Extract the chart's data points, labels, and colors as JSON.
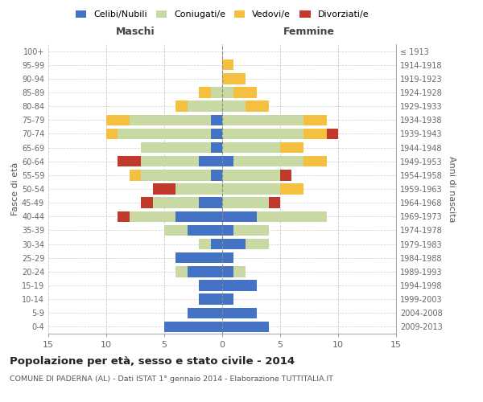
{
  "age_groups": [
    "0-4",
    "5-9",
    "10-14",
    "15-19",
    "20-24",
    "25-29",
    "30-34",
    "35-39",
    "40-44",
    "45-49",
    "50-54",
    "55-59",
    "60-64",
    "65-69",
    "70-74",
    "75-79",
    "80-84",
    "85-89",
    "90-94",
    "95-99",
    "100+"
  ],
  "years": [
    "2009-2013",
    "2004-2008",
    "1999-2003",
    "1994-1998",
    "1989-1993",
    "1984-1988",
    "1979-1983",
    "1974-1978",
    "1969-1973",
    "1964-1968",
    "1959-1963",
    "1954-1958",
    "1949-1953",
    "1944-1948",
    "1939-1943",
    "1934-1938",
    "1929-1933",
    "1924-1928",
    "1919-1923",
    "1914-1918",
    "≤ 1913"
  ],
  "maschi_celibi": [
    5,
    3,
    2,
    2,
    3,
    4,
    1,
    3,
    4,
    2,
    0,
    1,
    2,
    1,
    1,
    1,
    0,
    0,
    0,
    0,
    0
  ],
  "maschi_coniugati": [
    0,
    0,
    0,
    0,
    1,
    0,
    1,
    2,
    4,
    4,
    4,
    6,
    5,
    6,
    8,
    7,
    3,
    1,
    0,
    0,
    0
  ],
  "maschi_vedovi": [
    0,
    0,
    0,
    0,
    0,
    0,
    0,
    0,
    0,
    0,
    0,
    1,
    0,
    0,
    1,
    2,
    1,
    1,
    0,
    0,
    0
  ],
  "maschi_divorziati": [
    0,
    0,
    0,
    0,
    0,
    0,
    0,
    0,
    1,
    1,
    2,
    0,
    2,
    0,
    0,
    0,
    0,
    0,
    0,
    0,
    0
  ],
  "femmine_nubili": [
    4,
    3,
    1,
    3,
    1,
    1,
    2,
    1,
    3,
    0,
    0,
    0,
    1,
    0,
    0,
    0,
    0,
    0,
    0,
    0,
    0
  ],
  "femmine_coniugate": [
    0,
    0,
    0,
    0,
    1,
    0,
    2,
    3,
    6,
    4,
    5,
    5,
    6,
    5,
    7,
    7,
    2,
    1,
    0,
    0,
    0
  ],
  "femmine_vedove": [
    0,
    0,
    0,
    0,
    0,
    0,
    0,
    0,
    0,
    0,
    2,
    0,
    2,
    2,
    2,
    2,
    2,
    2,
    2,
    1,
    0
  ],
  "femmine_divorziate": [
    0,
    0,
    0,
    0,
    0,
    0,
    0,
    0,
    0,
    1,
    0,
    1,
    0,
    0,
    1,
    0,
    0,
    0,
    0,
    0,
    0
  ],
  "color_celibi": "#4472c4",
  "color_coniugati": "#c8d9a4",
  "color_vedovi": "#f5c040",
  "color_divorziati": "#c0392b",
  "title": "Popolazione per età, sesso e stato civile - 2014",
  "subtitle": "COMUNE DI PADERNA (AL) - Dati ISTAT 1° gennaio 2014 - Elaborazione TUTTITALIA.IT",
  "legend_labels": [
    "Celibi/Nubili",
    "Coniugati/e",
    "Vedovi/e",
    "Divorziati/e"
  ],
  "label_maschi": "Maschi",
  "label_femmine": "Femmine",
  "ylabel_left": "Fasce di età",
  "ylabel_right": "Anni di nascita",
  "xlim": 15
}
